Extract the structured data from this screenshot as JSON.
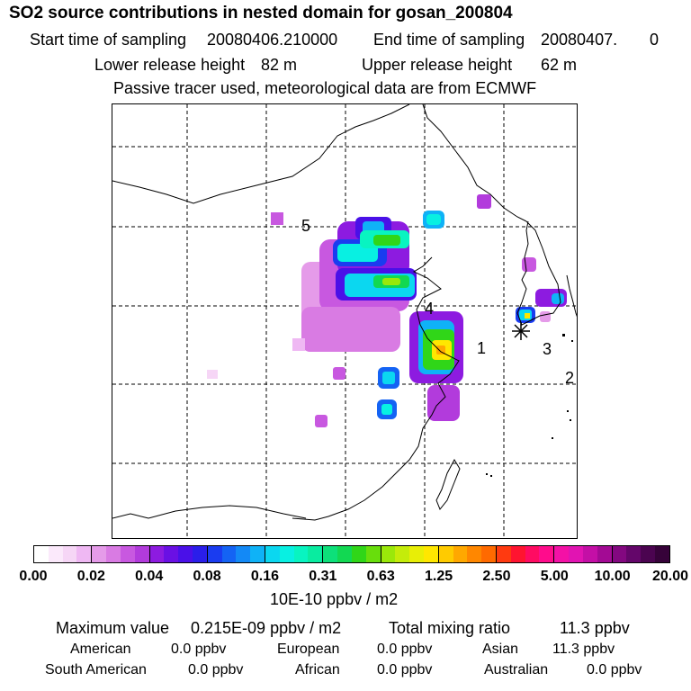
{
  "header": {
    "title": "SO2 source contributions in nested domain for gosan_200804",
    "start_label": "Start time of sampling",
    "start_value": "20080406.210000",
    "end_label": "End time of sampling",
    "end_value": "20080407.",
    "end_value_extra": "0",
    "lower_label": "Lower release height",
    "lower_value": "82 m",
    "upper_label": "Upper release height",
    "upper_value": "62 m",
    "note": "Passive tracer used, meteorological data are from ECMWF"
  },
  "map": {
    "markers": [
      "1",
      "2",
      "3",
      "4",
      "5"
    ],
    "receptor_symbol": "✳"
  },
  "colorbar": {
    "ticks": [
      "0.00",
      "0.02",
      "0.04",
      "0.08",
      "0.16",
      "0.31",
      "0.63",
      "1.25",
      "2.50",
      "5.00",
      "10.00",
      "20.00"
    ],
    "colors": [
      "#ffffff",
      "#fbe9fb",
      "#f6d6f6",
      "#efb8f3",
      "#e59be9",
      "#d97be3",
      "#c858e0",
      "#b23bdc",
      "#8d1be0",
      "#6a10e4",
      "#4a10e8",
      "#2a1eea",
      "#1a3cf0",
      "#1463f4",
      "#1389f6",
      "#0fb2f7",
      "#0bd7f0",
      "#08f0e2",
      "#08f4c1",
      "#09eca0",
      "#0de07a",
      "#12d852",
      "#30d618",
      "#68de0c",
      "#9ae80a",
      "#c4ec0a",
      "#e8ee06",
      "#ffe700",
      "#ffcb00",
      "#ffa800",
      "#ff8700",
      "#ff6a00",
      "#ff3a10",
      "#ff1430",
      "#ff0b62",
      "#ff0c8c",
      "#f411a6",
      "#e114b2",
      "#c40fa6",
      "#a30a94",
      "#830880",
      "#64066a",
      "#4b0450",
      "#360239"
    ],
    "unit": "10E-10 ppbv / m2"
  },
  "summary": {
    "max_label": "Maximum value",
    "max_value": "0.215E-09 ppbv / m2",
    "total_label": "Total mixing ratio",
    "total_value": "11.3 ppbv",
    "regions": [
      {
        "name": "American",
        "value": "0.0 ppbv"
      },
      {
        "name": "European",
        "value": "0.0 ppbv"
      },
      {
        "name": "Asian",
        "value": "11.3 ppbv"
      },
      {
        "name": "South American",
        "value": "0.0 ppbv"
      },
      {
        "name": "African",
        "value": "0.0 ppbv"
      },
      {
        "name": "Australian",
        "value": "0.0 ppbv"
      }
    ]
  }
}
